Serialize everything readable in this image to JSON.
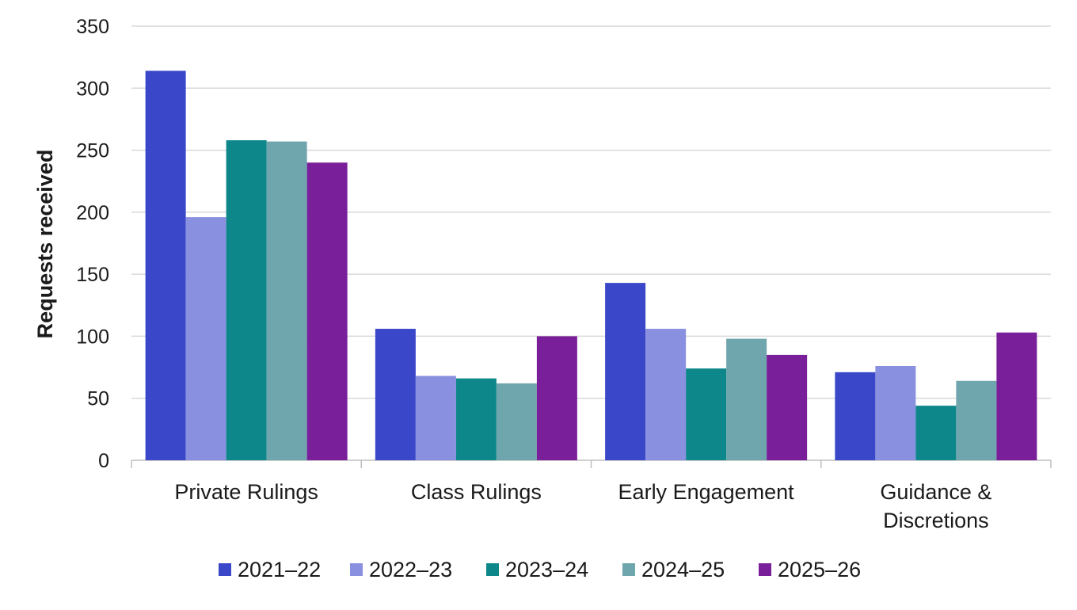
{
  "chart_data": {
    "type": "bar",
    "title": "",
    "xlabel": "",
    "ylabel": "Requests received",
    "ylim": [
      0,
      350
    ],
    "yticks": [
      0,
      50,
      100,
      150,
      200,
      250,
      300,
      350
    ],
    "grid": true,
    "legend_position": "bottom",
    "categories": [
      [
        "Private Rulings"
      ],
      [
        "Class Rulings"
      ],
      [
        "Early Engagement"
      ],
      [
        "Guidance &",
        "Discretions"
      ]
    ],
    "series": [
      {
        "name": "2021–22",
        "color": "#3b47c9",
        "values": [
          314,
          106,
          143,
          71
        ]
      },
      {
        "name": "2022–23",
        "color": "#8a90e0",
        "values": [
          196,
          68,
          106,
          76
        ]
      },
      {
        "name": "2023–24",
        "color": "#0e878a",
        "values": [
          258,
          66,
          74,
          44
        ]
      },
      {
        "name": "2024–25",
        "color": "#6fa5ac",
        "values": [
          257,
          62,
          98,
          64
        ]
      },
      {
        "name": "2025–26",
        "color": "#7a1f9a",
        "values": [
          240,
          100,
          85,
          103
        ]
      }
    ],
    "colors": {
      "grid": "#d9d9d9",
      "axis": "#bfbfbf",
      "text": "#1a1a1a"
    }
  }
}
